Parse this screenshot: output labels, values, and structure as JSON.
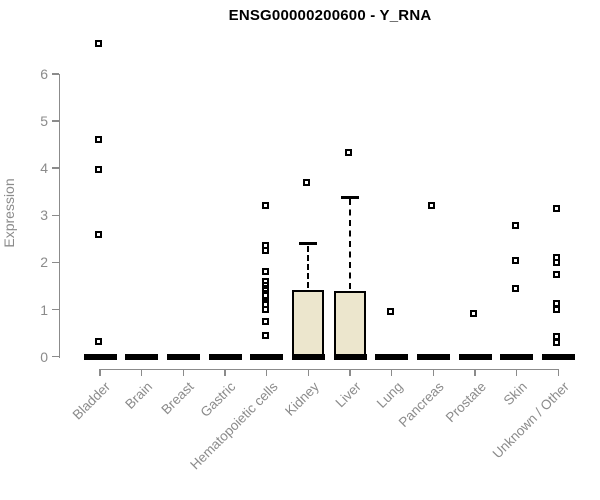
{
  "chart_data": {
    "type": "box",
    "title": "ENSG00000200600 - Y_RNA",
    "ylabel": "Expression",
    "xlabel": "",
    "ylim": [
      0,
      6.8
    ],
    "yticks": [
      0,
      1,
      2,
      3,
      4,
      5,
      6
    ],
    "ytick_labels": [
      "0",
      "1",
      "2",
      "3",
      "4",
      "5",
      "6"
    ],
    "grid": "off",
    "legend": "none",
    "categories": [
      "Bladder",
      "Brain",
      "Breast",
      "Gastric",
      "Hematopoietic cells",
      "Kidney",
      "Liver",
      "Lung",
      "Pancreas",
      "Prostate",
      "Skin",
      "Unknown / Other"
    ],
    "series": [
      {
        "category": "Bladder",
        "q1": 0,
        "median": 0,
        "q3": 0,
        "whisker_low": 0,
        "whisker_high": 0,
        "outliers": [
          6.65,
          4.6,
          3.97,
          2.6,
          0.33
        ]
      },
      {
        "category": "Brain",
        "q1": 0,
        "median": 0,
        "q3": 0,
        "whisker_low": 0,
        "whisker_high": 0,
        "outliers": []
      },
      {
        "category": "Breast",
        "q1": 0,
        "median": 0,
        "q3": 0,
        "whisker_low": 0,
        "whisker_high": 0,
        "outliers": []
      },
      {
        "category": "Gastric",
        "q1": 0,
        "median": 0,
        "q3": 0,
        "whisker_low": 0,
        "whisker_high": 0,
        "outliers": []
      },
      {
        "category": "Hematopoietic cells",
        "q1": 0,
        "median": 0,
        "q3": 0,
        "whisker_low": 0,
        "whisker_high": 0,
        "outliers": [
          3.2,
          2.35,
          2.25,
          1.8,
          1.6,
          1.5,
          1.45,
          1.4,
          1.35,
          1.3,
          1.15,
          1.1,
          1.0,
          0.75,
          0.45
        ]
      },
      {
        "category": "Kidney",
        "q1": 0,
        "median": 0,
        "q3": 1.42,
        "whisker_low": 0,
        "whisker_high": 2.4,
        "outliers": [
          3.7
        ]
      },
      {
        "category": "Liver",
        "q1": 0,
        "median": 0,
        "q3": 1.4,
        "whisker_low": 0,
        "whisker_high": 3.38,
        "outliers": [
          4.33
        ]
      },
      {
        "category": "Lung",
        "q1": 0,
        "median": 0,
        "q3": 0,
        "whisker_low": 0,
        "whisker_high": 0,
        "outliers": [
          0.95
        ]
      },
      {
        "category": "Pancreas",
        "q1": 0,
        "median": 0,
        "q3": 0,
        "whisker_low": 0,
        "whisker_high": 0,
        "outliers": [
          3.2
        ]
      },
      {
        "category": "Prostate",
        "q1": 0,
        "median": 0,
        "q3": 0,
        "whisker_low": 0,
        "whisker_high": 0,
        "outliers": [
          0.92
        ]
      },
      {
        "category": "Skin",
        "q1": 0,
        "median": 0,
        "q3": 0,
        "whisker_low": 0,
        "whisker_high": 0,
        "outliers": [
          2.78,
          2.05,
          1.45
        ]
      },
      {
        "category": "Unknown / Other",
        "q1": 0,
        "median": 0,
        "q3": 0,
        "whisker_low": 0,
        "whisker_high": 0,
        "outliers": [
          3.15,
          2.1,
          2.0,
          1.75,
          1.13,
          1.0,
          0.42,
          0.3
        ]
      }
    ],
    "colors": {
      "box_fill": "#ECE6CD",
      "box_border": "#000000",
      "point_color": "#000000",
      "axis_color": "#8B8B8B",
      "tick_label_color": "#8B8B8B",
      "title_color": "#000000"
    }
  }
}
